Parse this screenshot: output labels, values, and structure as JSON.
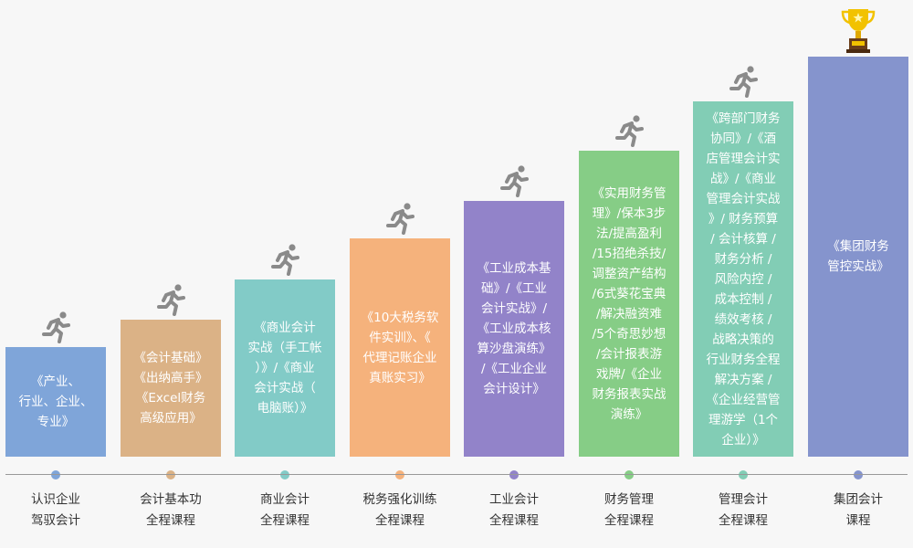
{
  "steps": [
    {
      "color": "#7fa5d9",
      "text": [
        "《产业、",
        "行业、企业、",
        "专业》"
      ],
      "label": [
        "认识企业",
        "驾驭会计"
      ]
    },
    {
      "color": "#dbb286",
      "text": [
        "《会计基础》",
        "《出纳高手》",
        "《Excel财务",
        "高级应用》"
      ],
      "label": [
        "会计基本功",
        "全程课程"
      ]
    },
    {
      "color": "#82cbc7",
      "text": [
        "《商业会计",
        "实战（手工帐",
        "）》/《商业",
        "会计实战（",
        "电脑账）》"
      ],
      "label": [
        "商业会计",
        "全程课程"
      ]
    },
    {
      "color": "#f5b27c",
      "text": [
        "《10大税务软",
        "件实训》、《",
        "代理记账企业",
        "真账实习》"
      ],
      "label": [
        "税务强化训练",
        "全程课程"
      ]
    },
    {
      "color": "#9283c9",
      "text": [
        "《工业成本基",
        "础》/《工业",
        "会计实战》/",
        "《工业成本核",
        "算沙盘演练》",
        "/《工业企业",
        "会计设计》"
      ],
      "label": [
        "工业会计",
        "全程课程"
      ]
    },
    {
      "color": "#86cd86",
      "text": [
        "《实用财务管",
        "理》/保本3步",
        "法/提高盈利",
        "/15招绝杀技/",
        "调整资产结构",
        "/6式葵花宝典",
        "/解决融资难",
        "/5个奇思妙想",
        "/会计报表游",
        "戏牌/《企业",
        "财务报表实战",
        "演练》"
      ],
      "label": [
        "财务管理",
        "全程课程"
      ]
    },
    {
      "color": "#82cdb5",
      "text": [
        "《跨部门财务",
        "协同》/《酒",
        "店管理会计实",
        "战》/《商业",
        "管理会计实战",
        "》/ 财务预算",
        "/ 会计核算 /",
        "财务分析 /",
        "风险内控 /",
        "成本控制 /",
        "绩效考核 /",
        "战略决策的",
        "行业财务全程",
        "解决方案 /",
        "《企业经营管",
        "理游学（1个",
        "企业）》"
      ],
      "label": [
        "管理会计",
        "全程课程"
      ]
    },
    {
      "color": "#8594cd",
      "text": [
        "《集团财务",
        "管控实战》"
      ],
      "label": [
        "集团会计",
        "课程"
      ]
    }
  ],
  "icons": {
    "runner": "running-person-icon",
    "trophy": "trophy-icon"
  },
  "colors": {
    "runner": "#8a8a8a",
    "axis": "#999999",
    "trophy": "#f2c200"
  }
}
